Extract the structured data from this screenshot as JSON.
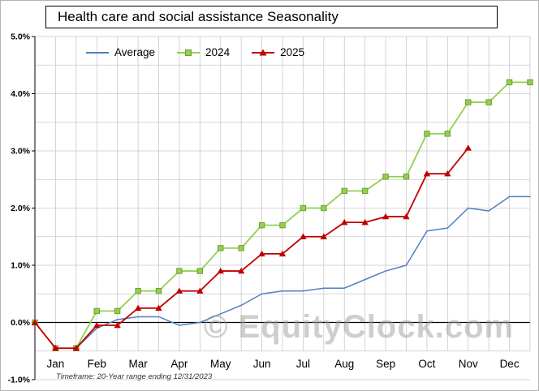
{
  "footer": "Timeframe: 20-Year range ending 12/31/2023",
  "watermark": "© EquityClock.com",
  "axis": {
    "y_tick_labels": [
      "5.0%",
      "4.0%",
      "3.0%",
      "2.0%",
      "1.0%",
      "0.0%",
      "-1.0%"
    ]
  },
  "chart_data": {
    "type": "line",
    "title": "Health care and social assistance Seasonality",
    "categories": [
      "Jan",
      "Feb",
      "Mar",
      "Apr",
      "May",
      "Jun",
      "Jul",
      "Aug",
      "Sep",
      "Oct",
      "Nov",
      "Dec"
    ],
    "xlim": [
      0,
      12
    ],
    "ylim": [
      -1.0,
      5.0
    ],
    "y_major_step": 1.0,
    "y_minor_step": 0.5,
    "x_minor_step": 0.5,
    "grid": true,
    "legend_position": "top-left",
    "x_unit": "month position (0 = Jan 1, 12 = Dec 31), semi-monthly points",
    "colors": {
      "grid": "#c9c9c9",
      "zero_line": "#000000",
      "axis": "#000000"
    },
    "series": [
      {
        "name": "Average",
        "color": "#4f81bd",
        "marker": "none",
        "line_width": 1.5,
        "x": [
          0,
          0.5,
          1,
          1.5,
          2,
          2.5,
          3,
          3.5,
          4,
          4.5,
          5,
          5.5,
          6,
          6.5,
          7,
          7.5,
          8,
          8.5,
          9,
          9.5,
          10,
          10.5,
          11,
          11.5,
          12
        ],
        "values": [
          0.0,
          -0.45,
          -0.45,
          -0.1,
          0.05,
          0.1,
          0.1,
          -0.05,
          0.0,
          0.15,
          0.3,
          0.5,
          0.55,
          0.55,
          0.6,
          0.6,
          0.75,
          0.9,
          1.0,
          1.6,
          1.65,
          2.0,
          1.95,
          2.2,
          2.2
        ]
      },
      {
        "name": "2024",
        "color": "#92d050",
        "marker": "square",
        "marker_stroke": "#6f9f30",
        "line_width": 1.8,
        "x": [
          0,
          0.5,
          1,
          1.5,
          2,
          2.5,
          3,
          3.5,
          4,
          4.5,
          5,
          5.5,
          6,
          6.5,
          7,
          7.5,
          8,
          8.5,
          9,
          9.5,
          10,
          10.5,
          11,
          11.5,
          12
        ],
        "values": [
          0.0,
          -0.45,
          -0.45,
          0.2,
          0.2,
          0.55,
          0.55,
          0.9,
          0.9,
          1.3,
          1.3,
          1.7,
          1.7,
          2.0,
          2.0,
          2.3,
          2.3,
          2.55,
          2.55,
          3.3,
          3.3,
          3.85,
          3.85,
          4.2,
          4.2
        ]
      },
      {
        "name": "2025",
        "color": "#c00000",
        "marker": "triangle",
        "line_width": 1.8,
        "x": [
          0,
          0.5,
          1,
          1.5,
          2,
          2.5,
          3,
          3.5,
          4,
          4.5,
          5,
          5.5,
          6,
          6.5,
          7,
          7.5,
          8,
          8.5,
          9,
          9.5,
          10,
          10.5
        ],
        "values": [
          0.0,
          -0.45,
          -0.45,
          -0.05,
          -0.05,
          0.25,
          0.25,
          0.55,
          0.55,
          0.9,
          0.9,
          1.2,
          1.2,
          1.5,
          1.5,
          1.75,
          1.75,
          1.85,
          1.85,
          2.6,
          2.6,
          3.05
        ]
      }
    ]
  }
}
